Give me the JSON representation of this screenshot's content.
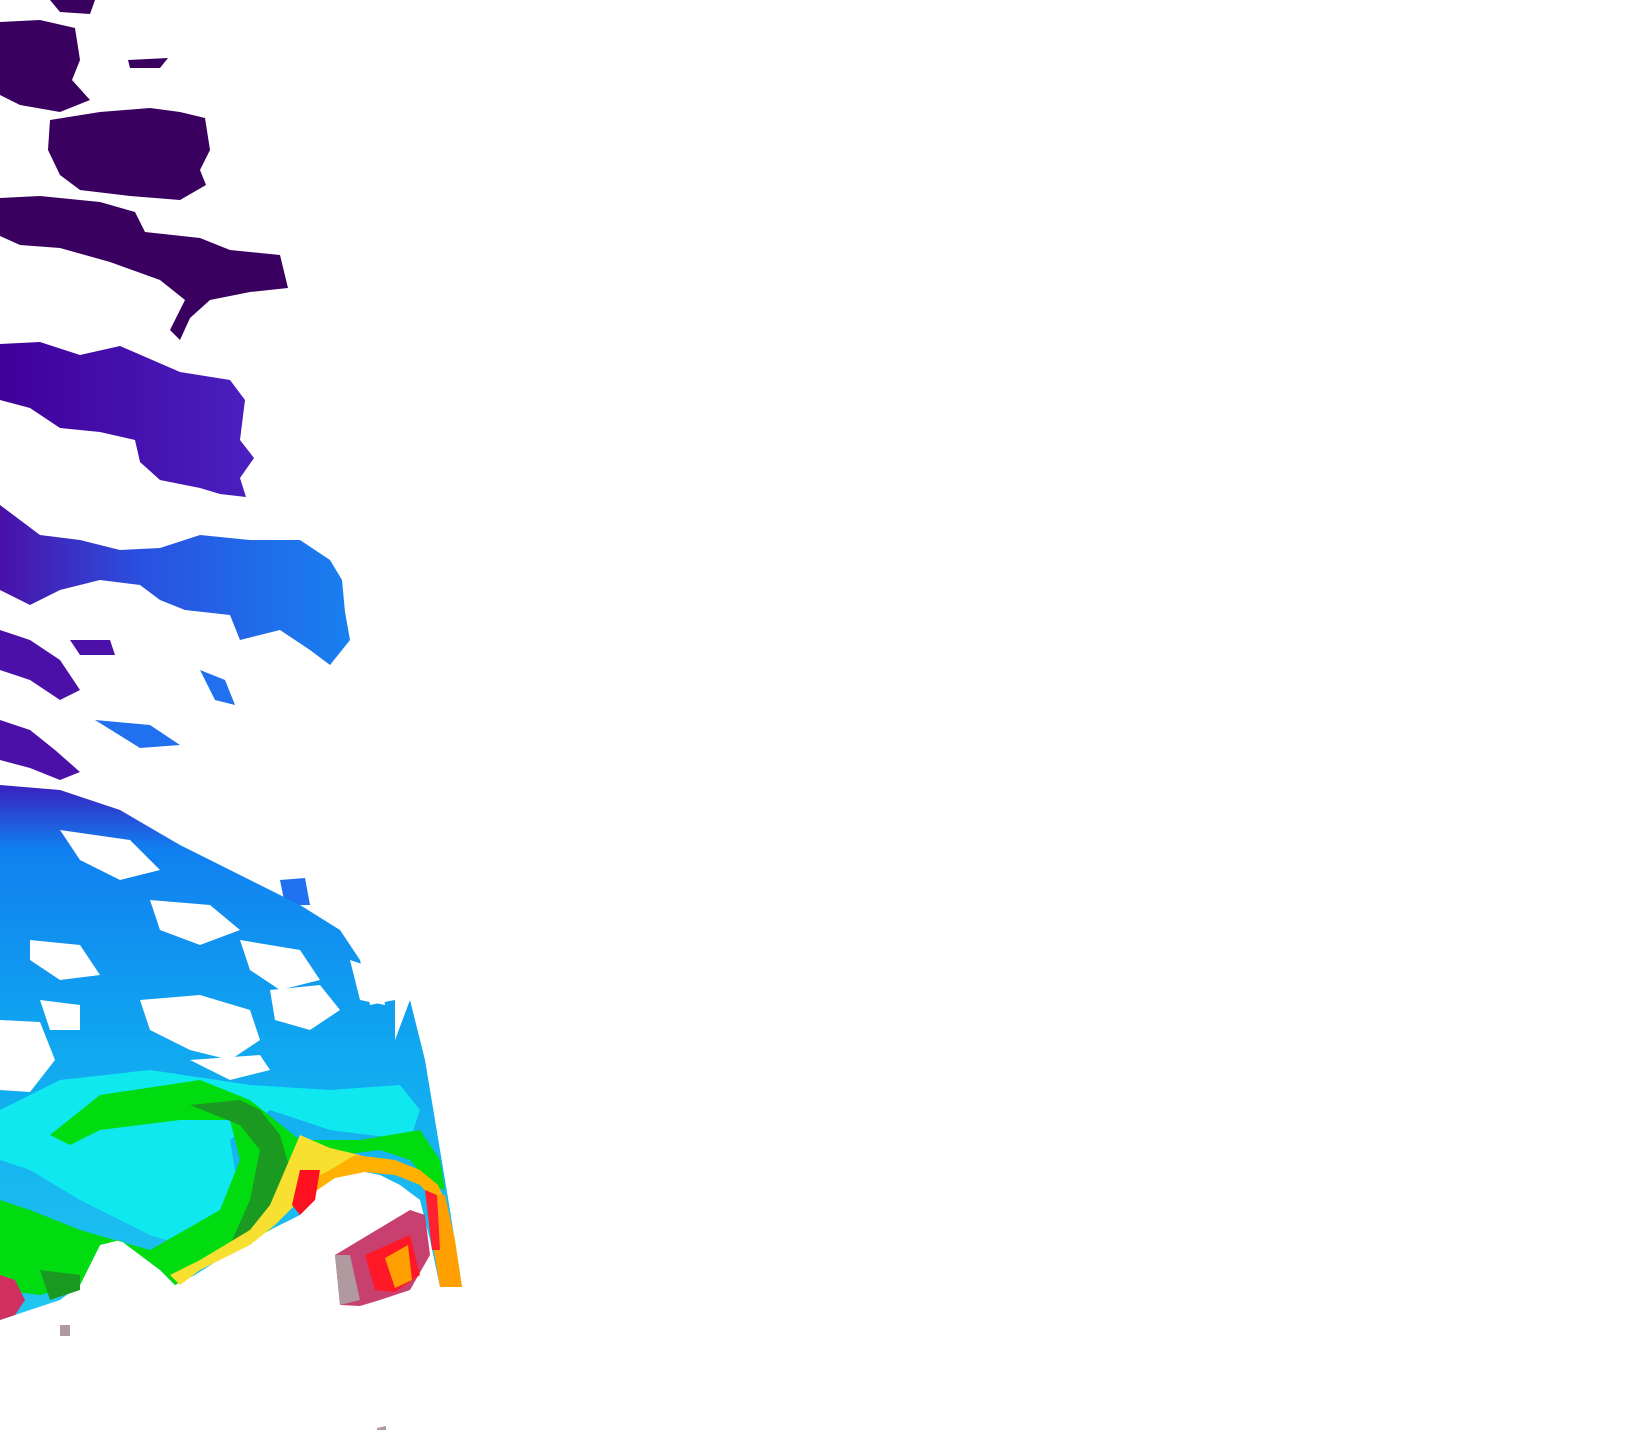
{
  "map": {
    "type": "satellite-raster-overlay",
    "background": "#ffffff",
    "palette": {
      "very_low": "#3a0060",
      "low": "#4a10a0",
      "low_mid": "#2060e8",
      "mid": "#1090f0",
      "mid_high": "#00e8f0",
      "high": "#00e010",
      "higher": "#1a9a20",
      "very_high": "#f0f040",
      "peak": "#ffa500",
      "extreme": "#ff1020",
      "saturated": "#c04070",
      "invalid": "#b09aa0"
    }
  }
}
